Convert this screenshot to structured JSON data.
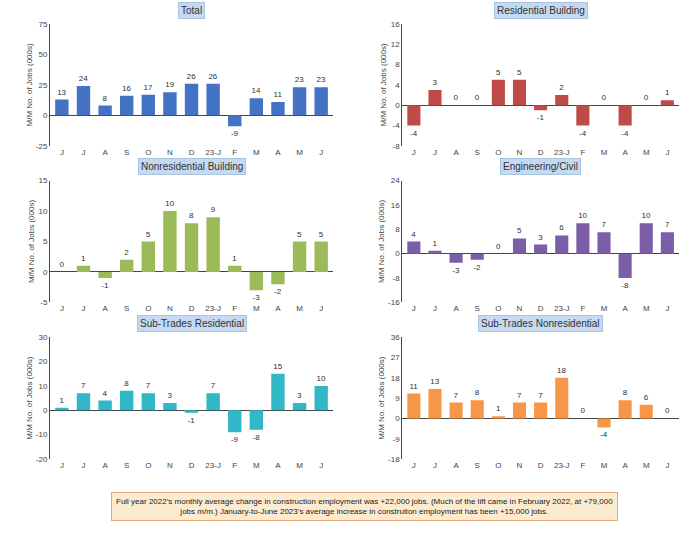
{
  "chart_data": [
    {
      "type": "bar",
      "title": "Total",
      "ylabel": "M/M No. of Jobs (000s)",
      "categories": [
        "J",
        "J",
        "A",
        "S",
        "O",
        "N",
        "D",
        "23-J",
        "F",
        "M",
        "A",
        "M",
        "J"
      ],
      "values": [
        13,
        24,
        8,
        16,
        17,
        19,
        26,
        26,
        -9,
        14,
        11,
        23,
        23
      ],
      "color": "#4472C4",
      "ylim": [
        -25,
        75
      ],
      "yticks": [
        -25,
        0,
        25,
        50,
        75
      ],
      "grid": false,
      "data_labels": true
    },
    {
      "type": "bar",
      "title": "Residential Building",
      "ylabel": "M/M No. of Jobs (000s)",
      "categories": [
        "J",
        "J",
        "A",
        "S",
        "O",
        "N",
        "D",
        "23-J",
        "F",
        "M",
        "A",
        "M",
        "J"
      ],
      "values": [
        -4,
        3,
        0,
        0,
        5,
        5,
        -1,
        2,
        -4,
        0,
        -4,
        0,
        1
      ],
      "color": "#BE4B48",
      "ylim": [
        -8,
        16
      ],
      "yticks": [
        -8,
        -4,
        0,
        4,
        8,
        12,
        16
      ],
      "grid": false,
      "data_labels": true
    },
    {
      "type": "bar",
      "title": "Nonresidential Building",
      "ylabel": "M/M No. of Jobs (000s)",
      "categories": [
        "J",
        "J",
        "A",
        "S",
        "O",
        "N",
        "D",
        "23-J",
        "F",
        "M",
        "A",
        "M",
        "J"
      ],
      "values": [
        0,
        1,
        -1,
        2,
        5,
        10,
        8,
        9,
        1,
        -3,
        -2,
        5,
        5
      ],
      "color": "#9BBB59",
      "ylim": [
        -5,
        15
      ],
      "yticks": [
        -5,
        0,
        5,
        10,
        15
      ],
      "grid": false,
      "data_labels": true
    },
    {
      "type": "bar",
      "title": "Engineering/Civil",
      "ylabel": "M/M No. of Jobs (000s)",
      "categories": [
        "J",
        "J",
        "A",
        "S",
        "O",
        "N",
        "D",
        "23-J",
        "F",
        "M",
        "A",
        "M",
        "J"
      ],
      "values": [
        4,
        1,
        -3,
        -2,
        0,
        5,
        3,
        6,
        10,
        7,
        -8,
        10,
        7
      ],
      "color": "#7B5EA7",
      "ylim": [
        -16,
        24
      ],
      "yticks": [
        -16,
        -8,
        0,
        8,
        16,
        24
      ],
      "grid": false,
      "data_labels": true
    },
    {
      "type": "bar",
      "title": "Sub-Trades Residential",
      "ylabel": "M/M No. of Jobs (000s)",
      "categories": [
        "J",
        "J",
        "A",
        "S",
        "O",
        "N",
        "D",
        "23-J",
        "F",
        "M",
        "A",
        "M",
        "J"
      ],
      "values": [
        1,
        7,
        4,
        8,
        7,
        3,
        -1,
        7,
        -9,
        -8,
        15,
        3,
        10
      ],
      "color": "#31B7C5",
      "ylim": [
        -20,
        30
      ],
      "yticks": [
        -20,
        -10,
        0,
        10,
        20,
        30
      ],
      "grid": false,
      "data_labels": true
    },
    {
      "type": "bar",
      "title": "Sub-Trades Nonresidential",
      "ylabel": "M/M No. of Jobs (000s)",
      "categories": [
        "J",
        "J",
        "A",
        "S",
        "O",
        "N",
        "D",
        "23-J",
        "F",
        "M",
        "A",
        "M",
        "J"
      ],
      "values": [
        11,
        13,
        7,
        8,
        1,
        7,
        7,
        18,
        0,
        -4,
        8,
        6,
        0
      ],
      "color": "#F79646",
      "ylim": [
        -18,
        36
      ],
      "yticks": [
        -18,
        -9,
        0,
        9,
        18,
        27,
        36
      ],
      "grid": false,
      "data_labels": true,
      "annotations": [
        "Full year 2022’s monthly average change in construction employment was +22,000 jobs. (Much of the lift came in February 2022, at +79,000",
        "jobs m/m.) January-to-June 2023’s average increase in constrution employment has been +15,000 jobs."
      ]
    }
  ]
}
